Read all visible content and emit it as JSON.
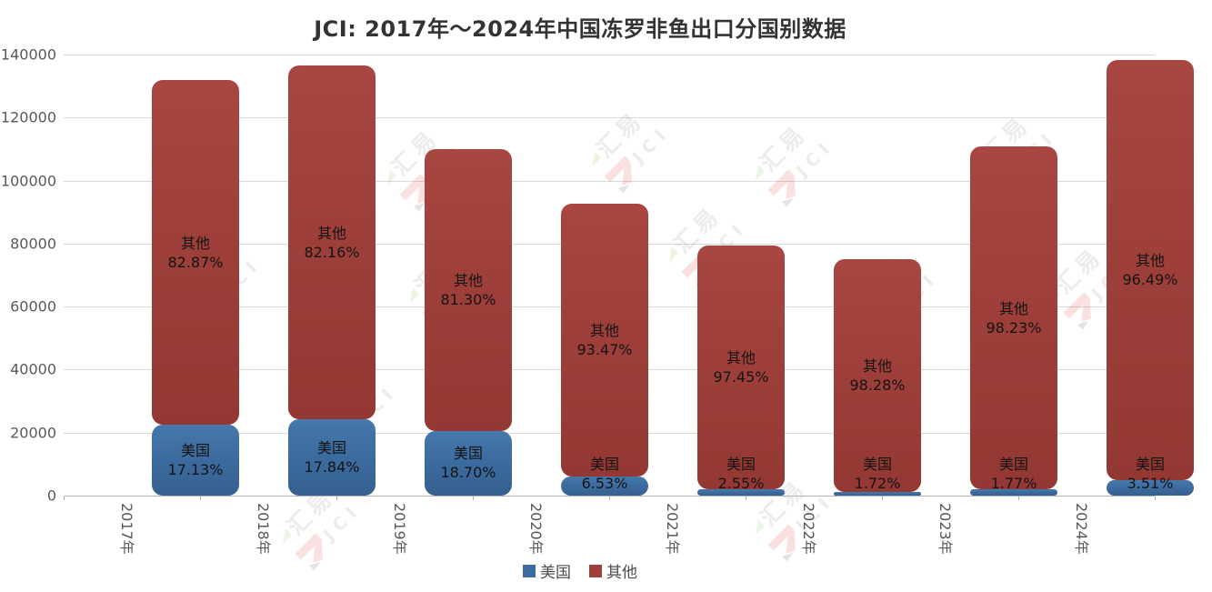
{
  "title": "JCI: 2017年～2024年中国冻罗非鱼出口分国别数据",
  "colors": {
    "us": "#3c6ca0",
    "other": "#9e3f3a",
    "title_text": "#333333",
    "axis_text": "#595959",
    "grid_line": "#d9d9d9",
    "axis_line": "#b3b3b3",
    "bar_label_text": "#141414",
    "watermark_red": "#e2483a",
    "watermark_green": "#8bc34a",
    "watermark_gray": "#8f8f8f"
  },
  "legend": {
    "position": "bottom",
    "items": [
      {
        "label": "美国",
        "color": "#3c6ca0"
      },
      {
        "label": "其他",
        "color": "#9e3f3a"
      }
    ]
  },
  "y_axis": {
    "min": 0,
    "max": 140000,
    "step": 20000,
    "ticks": [
      "0",
      "20000",
      "40000",
      "60000",
      "80000",
      "100000",
      "120000",
      "140000"
    ]
  },
  "watermark": {
    "text_cn": "汇易",
    "text_en": "JCI"
  },
  "chart_data": {
    "type": "bar",
    "stacked": true,
    "title": "JCI: 2017年～2024年中国冻罗非鱼出口分国别数据",
    "xlabel": "",
    "ylabel": "",
    "ylim": [
      0,
      140000
    ],
    "grid": true,
    "legend_position": "bottom",
    "categories": [
      "2017年",
      "2018年",
      "2019年",
      "2020年",
      "2021年",
      "2022年",
      "2023年",
      "2024年"
    ],
    "totals_estimated": [
      131800,
      136400,
      109900,
      92800,
      79400,
      75200,
      110900,
      138300
    ],
    "series": [
      {
        "name": "美国",
        "color": "#3c6ca0",
        "values": [
          22577,
          24334,
          20551,
          6060,
          2025,
          1293,
          1963,
          4854
        ],
        "percent_labels": [
          "17.13%",
          "17.84%",
          "18.70%",
          "6.53%",
          "2.55%",
          "1.72%",
          "1.77%",
          "3.51%"
        ]
      },
      {
        "name": "其他",
        "color": "#9e3f3a",
        "values": [
          109223,
          112066,
          89349,
          86740,
          77375,
          73907,
          108937,
          133446
        ],
        "percent_labels": [
          "82.87%",
          "82.16%",
          "81.30%",
          "93.47%",
          "97.45%",
          "98.28%",
          "98.23%",
          "96.49%"
        ]
      }
    ]
  }
}
